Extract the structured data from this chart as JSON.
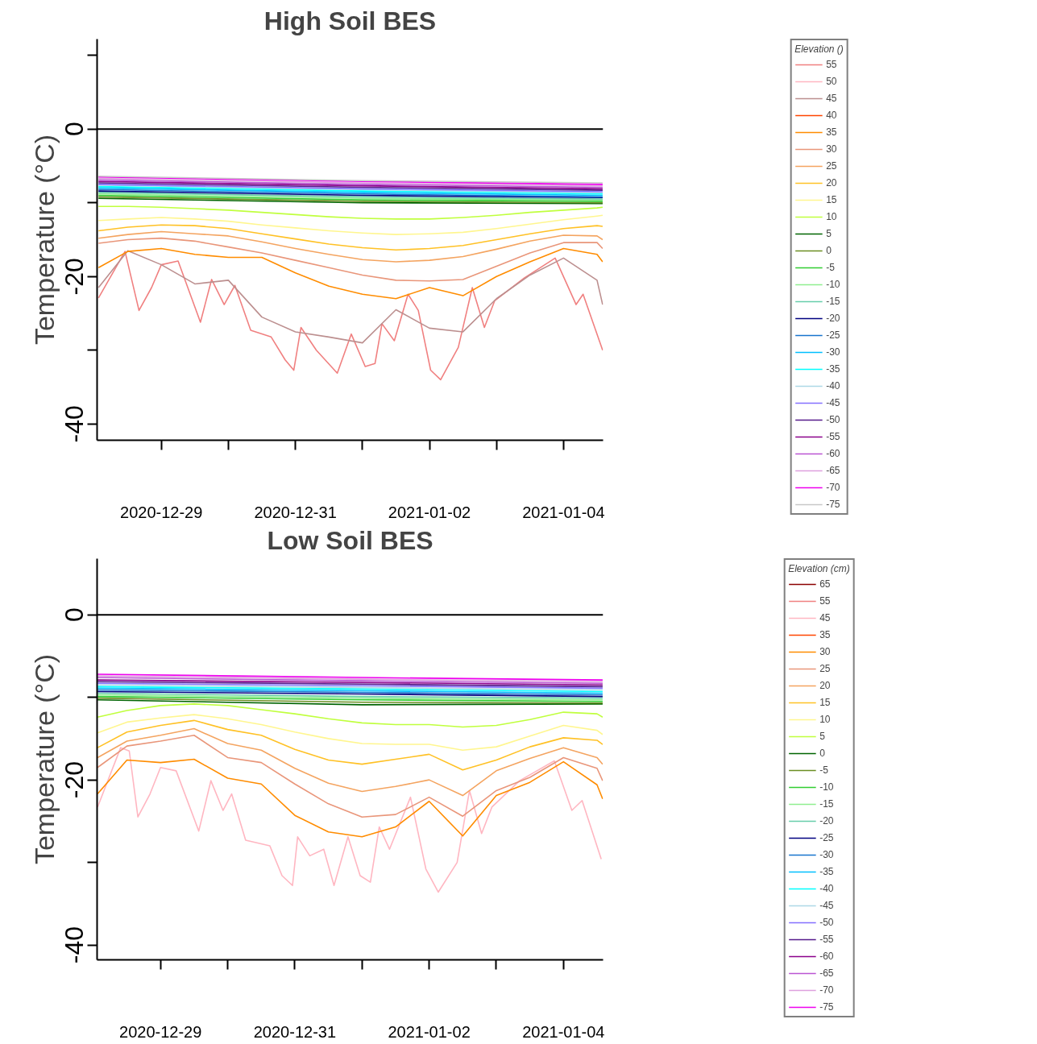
{
  "chart_data": [
    {
      "type": "line",
      "title": "High Soil BES",
      "ylabel": "Temperature (°C)",
      "legend_title": "Elevation ()",
      "legend": "right",
      "grid": false,
      "xlim": [
        "2020-12-28T01:00",
        "2021-01-04T14:10"
      ],
      "ylim": [
        -42.2,
        12.2
      ],
      "xticks": [
        "2020-12-29",
        {
          "value": "2020-12-30",
          "label": null
        },
        "2020-12-31",
        {
          "value": "2021-01-01",
          "label": null
        },
        "2021-01-02",
        {
          "value": "2021-01-03",
          "label": null
        },
        "2021-01-04"
      ],
      "yticks": [
        {
          "value": 10,
          "label": null
        },
        0,
        {
          "value": -10,
          "label": null
        },
        -20,
        {
          "value": -30,
          "label": null
        },
        -40
      ],
      "ref_lines": [
        {
          "axis": "y",
          "value": 0,
          "color": "#000000"
        }
      ],
      "x": [
        "2020-12-28T01:30",
        "2020-12-28T12:00",
        "2020-12-29T00:00",
        "2020-12-29T12:00",
        "2020-12-30T00:00",
        "2020-12-30T12:00",
        "2020-12-31T00:00",
        "2020-12-31T12:00",
        "2021-01-01T00:00",
        "2021-01-01T12:00",
        "2021-01-02T00:00",
        "2021-01-02T12:00",
        "2021-01-03T00:00",
        "2021-01-03T12:00",
        "2021-01-04T00:00",
        "2021-01-04T12:00",
        "2021-01-04T14:00"
      ],
      "series": [
        {
          "name": "55",
          "color": "#f08080",
          "x": [
            "2020-12-28T01:30",
            "2020-12-28T11:00",
            "2020-12-28T16:00",
            "2020-12-28T20:30",
            "2020-12-29T00:00",
            "2020-12-29T06:00",
            "2020-12-29T14:00",
            "2020-12-29T18:00",
            "2020-12-29T22:30",
            "2020-12-30T02:20",
            "2020-12-30T08:00",
            "2020-12-30T15:20",
            "2020-12-30T20:20",
            "2020-12-30T23:25",
            "2020-12-31T02:00",
            "2020-12-31T07:30",
            "2020-12-31T15:00",
            "2020-12-31T20:00",
            "2021-01-01T01:00",
            "2021-01-01T04:30",
            "2021-01-01T07:00",
            "2021-01-01T11:25",
            "2021-01-01T16:20",
            "2021-01-01T20:00",
            "2021-01-02T00:25",
            "2021-01-02T04:00",
            "2021-01-02T10:20",
            "2021-01-02T15:20",
            "2021-01-02T19:40",
            "2021-01-02T23:20",
            "2021-01-03T09:55",
            "2021-01-03T21:00",
            "2021-01-04T04:30",
            "2021-01-04T07:00",
            "2021-01-04T14:00"
          ],
          "values": [
            -22.9,
            -16.6,
            -24.6,
            -21.5,
            -18.4,
            -17.9,
            -26.2,
            -20.4,
            -23.8,
            -21.2,
            -27.3,
            -28.2,
            -31.3,
            -32.7,
            -26.9,
            -30,
            -33.1,
            -27.8,
            -32.2,
            -31.8,
            -26.4,
            -28.7,
            -22.4,
            -24.6,
            -32.7,
            -34,
            -29.6,
            -21.5,
            -26.9,
            -23.3,
            -20.2,
            -17.5,
            -23.8,
            -22.4,
            -30
          ]
        },
        {
          "name": "50",
          "color": "#ffb6c1",
          "values": [
            null,
            null,
            null,
            null,
            null,
            null,
            null,
            null,
            null,
            null,
            null,
            null,
            null,
            null,
            null,
            null,
            null
          ]
        },
        {
          "name": "45",
          "color": "#bc8f8f",
          "values": [
            -21.5,
            -16.5,
            -18.4,
            -21,
            -20.5,
            -25.5,
            -27.5,
            -28.2,
            -29,
            -24.5,
            -27,
            -27.5,
            -23,
            -19.8,
            -17.5,
            -20.5,
            -23.8
          ]
        },
        {
          "name": "40",
          "color": "#ff4500",
          "values": [
            null,
            null,
            null,
            null,
            null,
            null,
            null,
            null,
            null,
            null,
            null,
            null,
            null,
            null,
            null,
            null,
            null
          ]
        },
        {
          "name": "35",
          "color": "#ff8c00",
          "values": [
            -18.8,
            -16.6,
            -16.2,
            -17.0,
            -17.4,
            -17.4,
            -19.5,
            -21.3,
            -22.4,
            -23.0,
            -21.5,
            -22.6,
            -20.0,
            -18.0,
            -16.2,
            -17.0,
            -18.0
          ]
        },
        {
          "name": "30",
          "color": "#e9967a",
          "values": [
            -15.5,
            -15.0,
            -14.8,
            -15.2,
            -16.0,
            -16.8,
            -17.8,
            -18.8,
            -19.8,
            -20.5,
            -20.6,
            -20.4,
            -18.6,
            -16.8,
            -15.4,
            -15.4,
            -16.2
          ]
        },
        {
          "name": "25",
          "color": "#f4a460",
          "values": [
            -14.8,
            -14.3,
            -13.9,
            -14.2,
            -14.5,
            -15.3,
            -16.2,
            -17.0,
            -17.7,
            -18.0,
            -17.8,
            -17.3,
            -16.3,
            -15.2,
            -14.4,
            -14.5,
            -15.0
          ]
        },
        {
          "name": "20",
          "color": "#ffc125",
          "values": [
            -13.8,
            -13.3,
            -13.0,
            -13.1,
            -13.5,
            -14.2,
            -14.9,
            -15.6,
            -16.1,
            -16.4,
            -16.2,
            -15.8,
            -15.0,
            -14.2,
            -13.5,
            -13.1,
            -13.2
          ]
        },
        {
          "name": "15",
          "color": "#fff68f",
          "values": [
            -12.4,
            -12.2,
            -12.0,
            -12.2,
            -12.5,
            -13,
            -13.4,
            -13.8,
            -14.1,
            -14.3,
            -14.2,
            -14.0,
            -13.5,
            -12.9,
            -12.3,
            -11.8,
            -11.7
          ]
        },
        {
          "name": "10",
          "color": "#c0ff3e",
          "values": [
            -10.5,
            -10.5,
            -10.6,
            -10.8,
            -11,
            -11.3,
            -11.6,
            -11.9,
            -12.1,
            -12.2,
            -12.2,
            -12.0,
            -11.7,
            -11.3,
            -11.0,
            -10.7,
            -10.6
          ]
        },
        {
          "name": "5",
          "color": "#006400",
          "x": [
            "2020-12-28T01:30",
            "2021-01-01T00:00",
            "2021-01-04T14:00"
          ],
          "values": [
            -9.4,
            -10.0,
            -10.1
          ]
        },
        {
          "name": "0",
          "color": "#6b8e23",
          "x": [
            "2020-12-28T01:30",
            "2021-01-01T00:00",
            "2021-01-04T14:00"
          ],
          "values": [
            -9.2,
            -9.8,
            -10.0
          ]
        },
        {
          "name": "-5",
          "color": "#32cd32",
          "x": [
            "2020-12-28T01:30",
            "2021-01-01T00:00",
            "2021-01-04T14:00"
          ],
          "values": [
            -9.0,
            -9.6,
            -9.8
          ]
        },
        {
          "name": "-10",
          "color": "#90ee90",
          "x": [
            "2020-12-28T01:30",
            "2021-01-01T00:00",
            "2021-01-04T14:00"
          ],
          "values": [
            -8.8,
            -9.4,
            -9.6
          ]
        },
        {
          "name": "-15",
          "color": "#66cdaa",
          "x": [
            "2020-12-28T01:30",
            "2021-01-01T00:00",
            "2021-01-04T14:00"
          ],
          "values": [
            -8.6,
            -9.2,
            -9.5
          ]
        },
        {
          "name": "-20",
          "color": "#000080",
          "x": [
            "2020-12-28T01:30",
            "2021-01-01T00:00",
            "2021-01-04T14:00"
          ],
          "values": [
            -8.4,
            -9.0,
            -9.3
          ]
        },
        {
          "name": "-25",
          "color": "#1874cd",
          "x": [
            "2020-12-28T01:30",
            "2021-01-01T00:00",
            "2021-01-04T14:00"
          ],
          "values": [
            -8.2,
            -8.8,
            -9.2
          ]
        },
        {
          "name": "-30",
          "color": "#00bfff",
          "x": [
            "2020-12-28T01:30",
            "2021-01-01T00:00",
            "2021-01-04T14:00"
          ],
          "values": [
            -8.0,
            -8.6,
            -9.0
          ]
        },
        {
          "name": "-35",
          "color": "#00ffff",
          "x": [
            "2020-12-28T01:30",
            "2021-01-01T00:00",
            "2021-01-04T14:00"
          ],
          "values": [
            -7.8,
            -8.4,
            -8.8
          ]
        },
        {
          "name": "-40",
          "color": "#add8e6",
          "x": [
            "2020-12-28T01:30",
            "2021-01-01T00:00",
            "2021-01-04T14:00"
          ],
          "values": [
            -7.6,
            -8.2,
            -8.6
          ]
        },
        {
          "name": "-45",
          "color": "#8470ff",
          "x": [
            "2020-12-28T01:30",
            "2021-01-01T00:00",
            "2021-01-04T14:00"
          ],
          "values": [
            -7.5,
            -8.1,
            -8.5
          ]
        },
        {
          "name": "-50",
          "color": "#551a8b",
          "x": [
            "2020-12-28T01:30",
            "2021-01-01T00:00",
            "2021-01-04T14:00"
          ],
          "values": [
            -7.3,
            -7.9,
            -8.3
          ]
        },
        {
          "name": "-55",
          "color": "#8b008b",
          "x": [
            "2020-12-28T01:30",
            "2021-01-01T00:00",
            "2021-01-04T14:00"
          ],
          "values": [
            -7.1,
            -7.7,
            -8.1
          ]
        },
        {
          "name": "-60",
          "color": "#ba55d3",
          "x": [
            "2020-12-28T01:30",
            "2021-01-01T00:00",
            "2021-01-04T14:00"
          ],
          "values": [
            -6.9,
            -7.5,
            -7.9
          ]
        },
        {
          "name": "-65",
          "color": "#dda0dd",
          "x": [
            "2020-12-28T01:30",
            "2021-01-01T00:00",
            "2021-01-04T14:00"
          ],
          "values": [
            -6.7,
            -7.3,
            -7.7
          ]
        },
        {
          "name": "-70",
          "color": "#ee00ee",
          "x": [
            "2020-12-28T01:30",
            "2021-01-01T00:00",
            "2021-01-04T14:00"
          ],
          "values": [
            -6.5,
            -7.1,
            -7.5
          ]
        },
        {
          "name": "-75",
          "color": "#c8c8c8",
          "x": [
            "2020-12-28T01:30",
            "2021-01-01T00:00",
            "2021-01-04T14:00"
          ],
          "values": [
            -6.4,
            -7.0,
            -7.3
          ]
        }
      ]
    },
    {
      "type": "line",
      "title": "Low Soil BES",
      "ylabel": "Temperature (°C)",
      "legend_title": "Elevation (cm)",
      "legend": "right",
      "grid": false,
      "xlim": [
        "2020-12-28T01:20",
        "2021-01-04T14:10"
      ],
      "ylim": [
        -41.8,
        6.8
      ],
      "xticks": [
        "2020-12-29",
        {
          "value": "2020-12-30",
          "label": null
        },
        "2020-12-31",
        {
          "value": "2021-01-01",
          "label": null
        },
        "2021-01-02",
        {
          "value": "2021-01-03",
          "label": null
        },
        "2021-01-04"
      ],
      "yticks": [
        0,
        {
          "value": -10,
          "label": null
        },
        -20,
        {
          "value": -30,
          "label": null
        },
        -40
      ],
      "ref_lines": [
        {
          "axis": "y",
          "value": 0,
          "color": "#000000"
        }
      ],
      "x": [
        "2020-12-28T01:30",
        "2020-12-28T12:00",
        "2020-12-29T00:00",
        "2020-12-29T12:00",
        "2020-12-30T00:00",
        "2020-12-30T12:00",
        "2020-12-31T00:00",
        "2020-12-31T12:00",
        "2021-01-01T00:00",
        "2021-01-01T12:00",
        "2021-01-02T00:00",
        "2021-01-02T12:00",
        "2021-01-03T00:00",
        "2021-01-03T12:00",
        "2021-01-04T00:00",
        "2021-01-04T12:00",
        "2021-01-04T14:00"
      ],
      "series": [
        {
          "name": "65",
          "color": "#8b0000",
          "values": [
            null,
            null,
            null,
            null,
            null,
            null,
            null,
            null,
            null,
            null,
            null,
            null,
            null,
            null,
            null,
            null,
            null
          ]
        },
        {
          "name": "55",
          "color": "#f08080",
          "values": [
            null,
            null,
            null,
            null,
            null,
            null,
            null,
            null,
            null,
            null,
            null,
            null,
            null,
            null,
            null,
            null,
            null
          ]
        },
        {
          "name": "45",
          "color": "#ffb6c1",
          "x": [
            "2020-12-28T01:30",
            "2020-12-28T09:45",
            "2020-12-28T12:50",
            "2020-12-28T15:55",
            "2020-12-28T20:15",
            "2020-12-29T00:00",
            "2020-12-29T05:35",
            "2020-12-29T13:40",
            "2020-12-29T18:00",
            "2020-12-29T22:20",
            "2020-12-30T01:25",
            "2020-12-30T06:25",
            "2020-12-30T15:05",
            "2020-12-30T19:25",
            "2020-12-30T23:10",
            "2020-12-31T01:00",
            "2020-12-31T05:20",
            "2020-12-31T10:20",
            "2020-12-31T14:00",
            "2020-12-31T19:00",
            "2020-12-31T23:20",
            "2021-01-01T03:00",
            "2021-01-01T06:10",
            "2021-01-01T09:50",
            "2021-01-01T17:20",
            "2021-01-01T22:50",
            "2021-01-02T03:15",
            "2021-01-02T10:00",
            "2021-01-02T14:25",
            "2021-01-02T18:45",
            "2021-01-02T22:25",
            "2021-01-03T08:20",
            "2021-01-03T20:45",
            "2021-01-04T03:00",
            "2021-01-04T06:40",
            "2021-01-04T13:30"
          ],
          "values": [
            -23.3,
            -16.1,
            -16.5,
            -24.5,
            -21.7,
            -18.5,
            -18.9,
            -26.2,
            -20.1,
            -23.7,
            -21.7,
            -27.3,
            -28,
            -31.6,
            -32.8,
            -26.9,
            -29.2,
            -28.4,
            -32.8,
            -26.9,
            -31.6,
            -32.4,
            -25.7,
            -28.4,
            -22.1,
            -30.8,
            -33.6,
            -30,
            -21.3,
            -26.5,
            -23.3,
            -20.1,
            -17.7,
            -23.7,
            -22.5,
            -29.6
          ]
        },
        {
          "name": "35",
          "color": "#ff4500",
          "values": [
            null,
            null,
            null,
            null,
            null,
            null,
            null,
            null,
            null,
            null,
            null,
            null,
            null,
            null,
            null,
            null,
            null
          ]
        },
        {
          "name": "30",
          "color": "#ff8c00",
          "values": [
            -21.7,
            -17.6,
            -17.9,
            -17.5,
            -19.8,
            -20.5,
            -24.3,
            -26.3,
            -26.9,
            -25.7,
            -22.6,
            -26.8,
            -21.9,
            -20.3,
            -17.8,
            -20.6,
            -22.3
          ]
        },
        {
          "name": "25",
          "color": "#e9967a",
          "values": [
            -18.5,
            -15.9,
            -15.3,
            -14.6,
            -17.3,
            -17.9,
            -20.5,
            -22.9,
            -24.5,
            -24.2,
            -22.1,
            -24.4,
            -21.3,
            -19.7,
            -17.3,
            -18.6,
            -20.1
          ]
        },
        {
          "name": "20",
          "color": "#f4a460",
          "values": [
            -17.3,
            -15.3,
            -14.6,
            -13.8,
            -15.6,
            -16.4,
            -18.6,
            -20.4,
            -21.4,
            -20.8,
            -20.0,
            -21.9,
            -18.9,
            -17.4,
            -16.1,
            -17.3,
            -18.1
          ]
        },
        {
          "name": "15",
          "color": "#ffc125",
          "values": [
            -16.1,
            -14.2,
            -13.4,
            -12.8,
            -13.9,
            -14.6,
            -16.3,
            -17.6,
            -18.1,
            -17.5,
            -16.9,
            -18.8,
            -17.6,
            -16.0,
            -14.9,
            -15.2,
            -15.7
          ]
        },
        {
          "name": "10",
          "color": "#fff68f",
          "values": [
            -14.3,
            -13.0,
            -12.5,
            -12.1,
            -12.6,
            -13.3,
            -14.2,
            -15.0,
            -15.6,
            -15.7,
            -15.7,
            -16.4,
            -16.0,
            -14.7,
            -13.4,
            -14.0,
            -14.5
          ]
        },
        {
          "name": "5",
          "color": "#c0ff3e",
          "values": [
            -12.4,
            -11.6,
            -11.0,
            -10.8,
            -11.0,
            -11.5,
            -12.0,
            -12.6,
            -13.1,
            -13.3,
            -13.3,
            -13.6,
            -13.4,
            -12.7,
            -11.8,
            -12.0,
            -12.4
          ]
        },
        {
          "name": "0",
          "color": "#006400",
          "x": [
            "2020-12-28T01:30",
            "2021-01-01T00:00",
            "2021-01-04T14:00"
          ],
          "values": [
            -10.3,
            -10.9,
            -10.8
          ]
        },
        {
          "name": "-5",
          "color": "#6b8e23",
          "x": [
            "2020-12-28T01:30",
            "2021-01-01T00:00",
            "2021-01-04T14:00"
          ],
          "values": [
            -10.1,
            -10.6,
            -10.7
          ]
        },
        {
          "name": "-10",
          "color": "#32cd32",
          "x": [
            "2020-12-28T01:30",
            "2021-01-01T00:00",
            "2021-01-04T14:00"
          ],
          "values": [
            -9.9,
            -10.3,
            -10.5
          ]
        },
        {
          "name": "-15",
          "color": "#90ee90",
          "x": [
            "2020-12-28T01:30",
            "2021-01-01T00:00",
            "2021-01-04T14:00"
          ],
          "values": [
            -9.7,
            -10.1,
            -10.3
          ]
        },
        {
          "name": "-20",
          "color": "#66cdaa",
          "x": [
            "2020-12-28T01:30",
            "2021-01-01T00:00",
            "2021-01-04T14:00"
          ],
          "values": [
            -9.5,
            -9.9,
            -10.1
          ]
        },
        {
          "name": "-25",
          "color": "#000080",
          "x": [
            "2020-12-28T01:30",
            "2021-01-01T00:00",
            "2021-01-04T14:00"
          ],
          "values": [
            -9.3,
            -9.6,
            -9.9
          ]
        },
        {
          "name": "-30",
          "color": "#1874cd",
          "x": [
            "2020-12-28T01:30",
            "2021-01-01T00:00",
            "2021-01-04T14:00"
          ],
          "values": [
            -9.1,
            -9.4,
            -9.7
          ]
        },
        {
          "name": "-35",
          "color": "#00bfff",
          "x": [
            "2020-12-28T01:30",
            "2021-01-01T00:00",
            "2021-01-04T14:00"
          ],
          "values": [
            -8.9,
            -9.2,
            -9.5
          ]
        },
        {
          "name": "-40",
          "color": "#00ffff",
          "x": [
            "2020-12-28T01:30",
            "2021-01-01T00:00",
            "2021-01-04T14:00"
          ],
          "values": [
            -8.7,
            -9.0,
            -9.3
          ]
        },
        {
          "name": "-45",
          "color": "#add8e6",
          "x": [
            "2020-12-28T01:30",
            "2021-01-01T00:00",
            "2021-01-04T14:00"
          ],
          "values": [
            -8.5,
            -8.8,
            -9.1
          ]
        },
        {
          "name": "-50",
          "color": "#8470ff",
          "x": [
            "2020-12-28T01:30",
            "2021-01-01T00:00",
            "2021-01-04T14:00"
          ],
          "values": [
            -8.3,
            -8.6,
            -8.9
          ]
        },
        {
          "name": "-55",
          "color": "#551a8b",
          "x": [
            "2020-12-28T01:30",
            "2021-01-01T00:00",
            "2021-01-04T14:00"
          ],
          "values": [
            -8.1,
            -8.4,
            -8.7
          ]
        },
        {
          "name": "-60",
          "color": "#8b008b",
          "x": [
            "2020-12-28T01:30",
            "2021-01-01T00:00",
            "2021-01-04T14:00"
          ],
          "values": [
            -7.9,
            -8.2,
            -8.5
          ]
        },
        {
          "name": "-65",
          "color": "#ba55d3",
          "x": [
            "2020-12-28T01:30",
            "2021-01-01T00:00",
            "2021-01-04T14:00"
          ],
          "values": [
            -7.6,
            -8.0,
            -8.3
          ]
        },
        {
          "name": "-70",
          "color": "#dda0dd",
          "x": [
            "2020-12-28T01:30",
            "2021-01-01T00:00",
            "2021-01-04T14:00"
          ],
          "values": [
            -7.4,
            -7.8,
            -8.1
          ]
        },
        {
          "name": "-75",
          "color": "#ee00ee",
          "x": [
            "2020-12-28T01:30",
            "2021-01-01T00:00",
            "2021-01-04T14:00"
          ],
          "values": [
            -7.2,
            -7.6,
            -7.9
          ]
        }
      ]
    }
  ]
}
